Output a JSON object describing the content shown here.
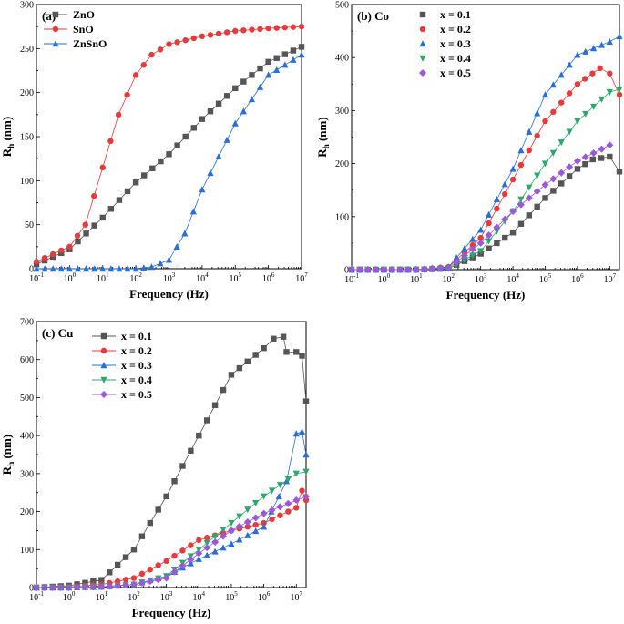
{
  "chart_data": [
    {
      "type": "scatter",
      "panel": "(a)",
      "xlabel": "Frequency (Hz)",
      "ylabel": "Rh (nm)",
      "ylabel_main": "R",
      "ylabel_sub": "h",
      "ylabel_rest": " (nm)",
      "xscale": "log",
      "xlim": [
        0.1,
        10000000
      ],
      "ylim": [
        0,
        300
      ],
      "x_ticks": [
        {
          "b": "10",
          "e": "-1"
        },
        {
          "b": "10",
          "e": "0"
        },
        {
          "b": "10",
          "e": "1"
        },
        {
          "b": "10",
          "e": "2"
        },
        {
          "b": "10",
          "e": "3"
        },
        {
          "b": "10",
          "e": "4"
        },
        {
          "b": "10",
          "e": "5"
        },
        {
          "b": "10",
          "e": "6"
        },
        {
          "b": "10",
          "e": "7"
        }
      ],
      "y_ticks": [
        "0",
        "50",
        "100",
        "150",
        "200",
        "250",
        "300"
      ],
      "legend_position": "top-left",
      "series": [
        {
          "name": "ZnO",
          "color": "#555555",
          "marker": "square",
          "x": [
            0.1,
            1,
            10,
            100,
            1000,
            10000,
            100000,
            1000000,
            10000000
          ],
          "y": [
            5,
            22,
            58,
            98,
            130,
            170,
            205,
            235,
            252
          ]
        },
        {
          "name": "SnO",
          "color": "#e83a3a",
          "marker": "circle",
          "x": [
            0.1,
            1,
            3,
            10,
            30,
            100,
            300,
            1000,
            10000,
            100000,
            1000000,
            10000000
          ],
          "y": [
            8,
            25,
            50,
            115,
            175,
            220,
            243,
            255,
            264,
            270,
            273,
            275
          ]
        },
        {
          "name": "ZnSnO",
          "color": "#2a6fd6",
          "marker": "triangle",
          "x": [
            0.1,
            1,
            10,
            100,
            300,
            1000,
            3000,
            10000,
            100000,
            1000000,
            10000000
          ],
          "y": [
            0,
            0,
            0,
            0,
            2,
            10,
            40,
            90,
            165,
            220,
            243
          ]
        }
      ]
    },
    {
      "type": "scatter",
      "panel": "(b) Co",
      "xlabel": "Frequency (Hz)",
      "ylabel": "Rh (nm)",
      "ylabel_main": "R",
      "ylabel_sub": "h",
      "ylabel_rest": " (nm)",
      "xscale": "log",
      "xlim": [
        0.1,
        20000000
      ],
      "ylim": [
        0,
        500
      ],
      "x_ticks": [
        {
          "b": "10",
          "e": "-1"
        },
        {
          "b": "10",
          "e": "0"
        },
        {
          "b": "10",
          "e": "1"
        },
        {
          "b": "10",
          "e": "2"
        },
        {
          "b": "10",
          "e": "3"
        },
        {
          "b": "10",
          "e": "4"
        },
        {
          "b": "10",
          "e": "5"
        },
        {
          "b": "10",
          "e": "6"
        },
        {
          "b": "10",
          "e": "7"
        }
      ],
      "y_ticks": [
        "0",
        "100",
        "200",
        "300",
        "400",
        "500"
      ],
      "legend_position": "top-left",
      "series": [
        {
          "name": "x = 0.1",
          "color": "#555555",
          "marker": "square",
          "x": [
            0.1,
            1,
            10,
            100,
            1000,
            10000,
            100000,
            1000000,
            3000000,
            10000000,
            20000000
          ],
          "y": [
            0,
            0,
            0,
            2,
            30,
            70,
            135,
            190,
            208,
            213,
            185
          ]
        },
        {
          "name": "x = 0.2",
          "color": "#e83a3a",
          "marker": "circle",
          "x": [
            0.1,
            1,
            10,
            100,
            1000,
            10000,
            100000,
            1000000,
            5000000,
            10000000,
            20000000
          ],
          "y": [
            0,
            0,
            0,
            5,
            60,
            170,
            280,
            350,
            380,
            370,
            330
          ]
        },
        {
          "name": "x = 0.3",
          "color": "#2a6fd6",
          "marker": "triangle",
          "x": [
            0.1,
            1,
            10,
            100,
            1000,
            10000,
            100000,
            1000000,
            10000000,
            20000000
          ],
          "y": [
            0,
            0,
            0,
            5,
            75,
            190,
            330,
            405,
            430,
            440
          ]
        },
        {
          "name": "x = 0.4",
          "color": "#2ca86a",
          "marker": "triangle-down",
          "x": [
            0.1,
            1,
            10,
            100,
            1000,
            10000,
            100000,
            1000000,
            10000000,
            20000000
          ],
          "y": [
            0,
            0,
            0,
            2,
            35,
            110,
            200,
            280,
            335,
            340
          ]
        },
        {
          "name": "x = 0.5",
          "color": "#9b59d9",
          "marker": "diamond",
          "x": [
            0.1,
            1,
            10,
            100,
            1000,
            10000,
            100000,
            1000000,
            10000000
          ],
          "y": [
            0,
            0,
            0,
            3,
            50,
            110,
            160,
            205,
            235
          ]
        }
      ]
    },
    {
      "type": "scatter",
      "panel": "(c) Cu",
      "xlabel": "Frequency (Hz)",
      "ylabel": "Rh (nm)",
      "ylabel_main": "R",
      "ylabel_sub": "h",
      "ylabel_rest": " (nm)",
      "xscale": "log",
      "xlim": [
        0.1,
        20000000
      ],
      "ylim": [
        0,
        700
      ],
      "x_ticks": [
        {
          "b": "10",
          "e": "-1"
        },
        {
          "b": "10",
          "e": "0"
        },
        {
          "b": "10",
          "e": "1"
        },
        {
          "b": "10",
          "e": "2"
        },
        {
          "b": "10",
          "e": "3"
        },
        {
          "b": "10",
          "e": "4"
        },
        {
          "b": "10",
          "e": "5"
        },
        {
          "b": "10",
          "e": "6"
        },
        {
          "b": "10",
          "e": "7"
        }
      ],
      "y_ticks": [
        "0",
        "100",
        "200",
        "300",
        "400",
        "500",
        "600",
        "700"
      ],
      "legend_position": "top-left",
      "series": [
        {
          "name": "x = 0.1",
          "color": "#555555",
          "marker": "square",
          "x": [
            0.1,
            1,
            10,
            100,
            1000,
            10000,
            100000,
            1000000,
            2000000,
            4000000,
            5000000,
            10000000,
            15000000,
            20000000
          ],
          "y": [
            0,
            5,
            20,
            100,
            240,
            400,
            560,
            630,
            655,
            660,
            620,
            620,
            610,
            490
          ]
        },
        {
          "name": "x = 0.2",
          "color": "#e83a3a",
          "marker": "circle",
          "x": [
            0.1,
            1,
            10,
            100,
            1000,
            10000,
            100000,
            1000000,
            10000000,
            15000000,
            20000000
          ],
          "y": [
            0,
            2,
            8,
            25,
            70,
            125,
            150,
            170,
            210,
            255,
            230
          ]
        },
        {
          "name": "x = 0.3",
          "color": "#2a6fd6",
          "marker": "triangle",
          "x": [
            0.1,
            1,
            10,
            100,
            1000,
            10000,
            100000,
            1000000,
            5000000,
            10000000,
            15000000,
            20000000
          ],
          "y": [
            0,
            0,
            2,
            8,
            30,
            75,
            115,
            160,
            280,
            405,
            410,
            350
          ]
        },
        {
          "name": "x = 0.4",
          "color": "#2ca86a",
          "marker": "triangle-down",
          "x": [
            0.1,
            1,
            10,
            100,
            1000,
            10000,
            100000,
            1000000,
            10000000,
            20000000
          ],
          "y": [
            0,
            0,
            2,
            8,
            30,
            100,
            170,
            240,
            300,
            305
          ]
        },
        {
          "name": "x = 0.5",
          "color": "#9b59d9",
          "marker": "diamond",
          "x": [
            0.1,
            1,
            10,
            100,
            1000,
            10000,
            100000,
            1000000,
            10000000,
            20000000
          ],
          "y": [
            0,
            0,
            2,
            8,
            25,
            90,
            150,
            195,
            230,
            240
          ]
        }
      ]
    }
  ]
}
